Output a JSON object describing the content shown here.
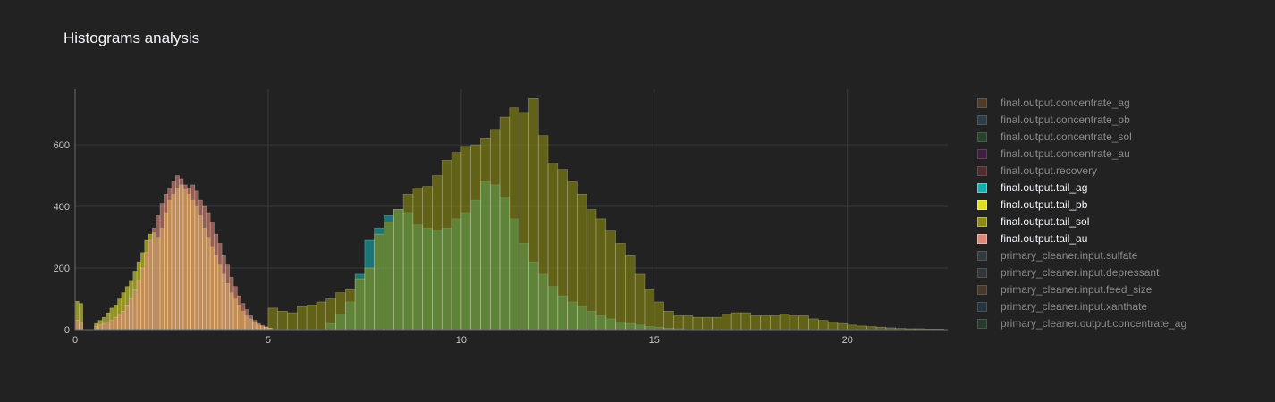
{
  "chart_data": {
    "type": "bar",
    "title": "Histograms analysis",
    "xlabel": "",
    "ylabel": "",
    "xlim": [
      0,
      22.6
    ],
    "ylim": [
      0,
      780
    ],
    "x_ticks": [
      0,
      5,
      10,
      15,
      20
    ],
    "y_ticks": [
      0,
      200,
      400,
      600
    ],
    "grid": true,
    "legend_position": "right",
    "barmode": "overlay",
    "series": [
      {
        "name": "final.output.concentrate_ag",
        "color": "#8c5a2e",
        "visible": false
      },
      {
        "name": "final.output.concentrate_pb",
        "color": "#3b5e7a",
        "visible": false
      },
      {
        "name": "final.output.concentrate_sol",
        "color": "#2f6e3b",
        "visible": false
      },
      {
        "name": "final.output.concentrate_au",
        "color": "#6a1b6a",
        "visible": false
      },
      {
        "name": "final.output.recovery",
        "color": "#8a3b3b",
        "visible": false
      },
      {
        "name": "final.output.tail_ag",
        "color": "#17b0b0",
        "visible": true,
        "bin_width": 0.25,
        "x": [
          6.5,
          6.75,
          7.0,
          7.25,
          7.5,
          7.75,
          8.0,
          8.25,
          8.5,
          8.75,
          9.0,
          9.25,
          9.5,
          9.75,
          10.0,
          10.25,
          10.5,
          10.75,
          11.0,
          11.25,
          11.5,
          11.75,
          12.0,
          12.25,
          12.5,
          12.75,
          13.0,
          13.25,
          13.5,
          13.75,
          14.0,
          14.25,
          14.5,
          14.75,
          15.0,
          15.25,
          15.5
        ],
        "values": [
          20,
          50,
          90,
          180,
          290,
          330,
          370,
          390,
          380,
          340,
          330,
          320,
          330,
          360,
          380,
          420,
          480,
          470,
          430,
          360,
          280,
          220,
          180,
          140,
          110,
          90,
          75,
          60,
          45,
          35,
          25,
          20,
          15,
          10,
          8,
          5,
          3
        ]
      },
      {
        "name": "final.output.tail_pb",
        "color": "#e0e022",
        "visible": true,
        "bin_width": 0.1,
        "x": [
          0.0,
          0.1,
          0.5,
          0.6,
          0.7,
          0.8,
          0.9,
          1.0,
          1.1,
          1.2,
          1.3,
          1.4,
          1.5,
          1.6,
          1.7,
          1.8,
          1.9,
          2.0,
          2.1,
          2.2,
          2.3,
          2.4,
          2.5,
          2.6,
          2.7,
          2.8,
          2.9,
          3.0,
          3.1,
          3.2,
          3.3,
          3.4,
          3.5,
          3.6,
          3.7,
          3.8,
          3.9,
          4.0,
          4.1,
          4.2,
          4.3,
          4.4,
          4.5,
          4.6,
          4.7,
          4.8,
          4.9,
          5.0
        ],
        "values": [
          92,
          85,
          20,
          30,
          40,
          55,
          70,
          80,
          100,
          120,
          140,
          160,
          190,
          220,
          250,
          290,
          310,
          315,
          300,
          330,
          380,
          420,
          440,
          460,
          470,
          455,
          440,
          420,
          400,
          370,
          330,
          300,
          270,
          240,
          210,
          180,
          150,
          120,
          100,
          80,
          60,
          45,
          35,
          25,
          15,
          10,
          8,
          5
        ]
      },
      {
        "name": "final.output.tail_sol",
        "color": "#8c8c10",
        "visible": true,
        "bin_width": 0.25,
        "x": [
          5.0,
          5.25,
          5.5,
          5.75,
          6.0,
          6.25,
          6.5,
          6.75,
          7.0,
          7.25,
          7.5,
          7.75,
          8.0,
          8.25,
          8.5,
          8.75,
          9.0,
          9.25,
          9.5,
          9.75,
          10.0,
          10.25,
          10.5,
          10.75,
          11.0,
          11.25,
          11.5,
          11.75,
          12.0,
          12.25,
          12.5,
          12.75,
          13.0,
          13.25,
          13.5,
          13.75,
          14.0,
          14.25,
          14.5,
          14.75,
          15.0,
          15.25,
          15.5,
          15.75,
          16.0,
          16.25,
          16.5,
          16.75,
          17.0,
          17.25,
          17.5,
          17.75,
          18.0,
          18.25,
          18.5,
          18.75,
          19.0,
          19.25,
          19.5,
          19.75,
          20.0,
          20.25,
          20.5,
          20.75,
          21.0,
          21.25,
          21.5,
          21.75,
          22.0,
          22.25
        ],
        "values": [
          70,
          60,
          55,
          75,
          80,
          90,
          100,
          120,
          130,
          165,
          200,
          310,
          350,
          390,
          440,
          460,
          465,
          500,
          550,
          575,
          595,
          600,
          620,
          650,
          690,
          720,
          705,
          750,
          630,
          540,
          520,
          480,
          440,
          390,
          360,
          320,
          280,
          240,
          180,
          130,
          90,
          60,
          45,
          45,
          40,
          40,
          40,
          50,
          55,
          55,
          45,
          45,
          45,
          50,
          45,
          45,
          35,
          30,
          25,
          20,
          15,
          12,
          10,
          8,
          6,
          4,
          3,
          3,
          2,
          2
        ]
      },
      {
        "name": "final.output.tail_au",
        "color": "#e08878",
        "visible": true,
        "bin_width": 0.1,
        "x": [
          0.0,
          0.1,
          0.5,
          0.6,
          0.7,
          0.8,
          0.9,
          1.0,
          1.1,
          1.2,
          1.3,
          1.4,
          1.5,
          1.6,
          1.7,
          1.8,
          1.9,
          2.0,
          2.1,
          2.2,
          2.3,
          2.4,
          2.5,
          2.6,
          2.7,
          2.8,
          2.9,
          3.0,
          3.1,
          3.2,
          3.3,
          3.4,
          3.5,
          3.6,
          3.7,
          3.8,
          3.9,
          4.0,
          4.1,
          4.2,
          4.3,
          4.4,
          4.5,
          4.6,
          4.7,
          4.8,
          4.9,
          5.0
        ],
        "values": [
          30,
          25,
          10,
          15,
          20,
          25,
          30,
          40,
          50,
          60,
          80,
          100,
          130,
          160,
          200,
          250,
          290,
          330,
          370,
          410,
          440,
          460,
          480,
          500,
          490,
          470,
          460,
          470,
          450,
          420,
          400,
          380,
          350,
          310,
          280,
          240,
          210,
          170,
          140,
          110,
          85,
          65,
          45,
          30,
          20,
          14,
          9,
          5
        ]
      },
      {
        "name": "primary_cleaner.input.sulfate",
        "color": "#4a5a66",
        "visible": false
      },
      {
        "name": "primary_cleaner.input.depressant",
        "color": "#46525a",
        "visible": false
      },
      {
        "name": "primary_cleaner.input.feed_size",
        "color": "#7a5530",
        "visible": false
      },
      {
        "name": "primary_cleaner.input.xanthate",
        "color": "#2f4a6a",
        "visible": false
      },
      {
        "name": "primary_cleaner.output.concentrate_ag",
        "color": "#2f5a3b",
        "visible": false
      }
    ]
  }
}
